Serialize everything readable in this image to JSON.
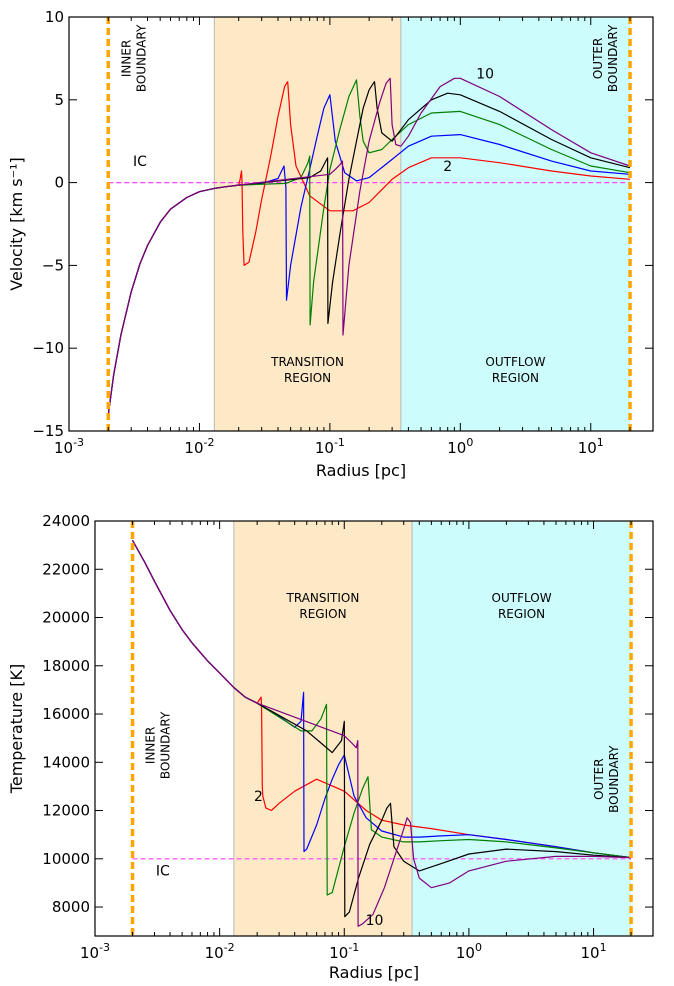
{
  "chart_data": [
    {
      "type": "line",
      "xscale": "log",
      "xlabel": "Radius [pc]",
      "ylabel": "Velocity [km s⁻¹]",
      "xlim": [
        0.001,
        30
      ],
      "ylim": [
        -15,
        10
      ],
      "x_ticks": [
        0.001,
        0.01,
        0.1,
        1,
        10
      ],
      "x_tick_labels": [
        {
          "base": "10",
          "exp": "-3"
        },
        {
          "base": "10",
          "exp": "-2"
        },
        {
          "base": "10",
          "exp": "-1"
        },
        {
          "base": "10",
          "exp": "0"
        },
        {
          "base": "10",
          "exp": "1"
        }
      ],
      "y_ticks": [
        -15,
        -10,
        -5,
        0,
        5,
        10
      ],
      "y_tick_labels": [
        "−15",
        "−10",
        "−5",
        "0",
        "5",
        "10"
      ],
      "regions": [
        {
          "label_lines": [
            "TRANSITION",
            "REGION"
          ],
          "x_start": 0.013,
          "x_end": 0.35,
          "color": "#fde9c6"
        },
        {
          "label_lines": [
            "OUTFLOW",
            "REGION"
          ],
          "x_start": 0.35,
          "x_end": 20,
          "color": "#ccfcfc"
        }
      ],
      "boundaries": [
        {
          "x": 0.002,
          "label_lines": [
            "INNER",
            "BOUNDARY"
          ],
          "label_y": 7.5
        },
        {
          "x": 20,
          "label_lines": [
            "OUTER",
            "BOUNDARY"
          ],
          "label_y": 7.5
        }
      ],
      "boundary_color": "#ffa500",
      "initial_condition": {
        "label": "IC",
        "y": 0,
        "label_x": 0.0035,
        "label_y": 1.0,
        "color": "#ff44ff"
      },
      "curve_labels": [
        {
          "text": "10",
          "x": 1.55,
          "y": 6.3
        },
        {
          "text": "2",
          "x": 0.8,
          "y": 0.7
        }
      ],
      "common_inner": {
        "x": [
          0.002,
          0.0022,
          0.0025,
          0.003,
          0.0035,
          0.004,
          0.005,
          0.006,
          0.008,
          0.01,
          0.013,
          0.016,
          0.02
        ],
        "y": [
          -14.0,
          -11.6,
          -9.2,
          -6.6,
          -4.9,
          -3.8,
          -2.4,
          -1.6,
          -0.9,
          -0.55,
          -0.35,
          -0.25,
          -0.15
        ]
      },
      "series": [
        {
          "color": "#ff0000",
          "x": [
            0.0205,
            0.021,
            0.0212,
            0.0215,
            0.022,
            0.024,
            0.027,
            0.03,
            0.035,
            0.04,
            0.045,
            0.0475,
            0.05,
            0.055,
            0.07,
            0.1,
            0.15,
            0.2,
            0.3,
            0.4,
            0.6,
            1,
            2,
            5,
            10,
            20
          ],
          "y": [
            0.2,
            0.7,
            0.1,
            -3.0,
            -5.0,
            -4.8,
            -3.0,
            -1.0,
            1.5,
            4.0,
            5.8,
            6.1,
            3.5,
            1.0,
            -0.8,
            -1.7,
            -1.7,
            -1.2,
            0.2,
            0.9,
            1.5,
            1.5,
            1.2,
            0.7,
            0.4,
            0.2
          ]
        },
        {
          "color": "#0000ff",
          "x": [
            0.02,
            0.03,
            0.04,
            0.0445,
            0.046,
            0.0465,
            0.05,
            0.06,
            0.07,
            0.08,
            0.09,
            0.1,
            0.11,
            0.13,
            0.16,
            0.2,
            0.3,
            0.4,
            0.6,
            1,
            2,
            5,
            10,
            20
          ],
          "y": [
            -0.15,
            -0.05,
            0.25,
            1.0,
            -0.3,
            -7.1,
            -5.0,
            -1.5,
            0.8,
            2.8,
            4.5,
            5.3,
            2.5,
            0.6,
            0.1,
            0.3,
            1.4,
            2.2,
            2.8,
            2.9,
            2.3,
            1.3,
            0.7,
            0.5
          ]
        },
        {
          "color": "#008000",
          "x": [
            0.046,
            0.06,
            0.068,
            0.07,
            0.0705,
            0.075,
            0.09,
            0.1,
            0.12,
            0.14,
            0.16,
            0.17,
            0.18,
            0.2,
            0.25,
            0.3,
            0.4,
            0.6,
            1,
            2,
            5,
            10,
            20
          ],
          "y": [
            -0.05,
            0.3,
            1.2,
            1.6,
            -8.6,
            -6.0,
            -1.5,
            0.8,
            3.3,
            5.2,
            6.2,
            4.0,
            2.5,
            1.8,
            2.0,
            2.6,
            3.5,
            4.2,
            4.3,
            3.5,
            2.0,
            1.0,
            0.6
          ]
        },
        {
          "color": "#000000",
          "x": [
            0.07,
            0.085,
            0.093,
            0.096,
            0.0965,
            0.105,
            0.12,
            0.14,
            0.16,
            0.18,
            0.2,
            0.22,
            0.23,
            0.25,
            0.3,
            0.4,
            0.6,
            0.8,
            1,
            2,
            5,
            10,
            20
          ],
          "y": [
            0.3,
            0.7,
            1.3,
            1.5,
            -8.5,
            -6.0,
            -3.0,
            0.2,
            2.5,
            4.5,
            5.6,
            6.1,
            4.5,
            3.0,
            2.5,
            3.8,
            5.0,
            5.4,
            5.3,
            4.3,
            2.6,
            1.5,
            0.9
          ]
        },
        {
          "color": "#800080",
          "x": [
            0.1,
            0.11,
            0.12,
            0.125,
            0.126,
            0.14,
            0.17,
            0.2,
            0.24,
            0.27,
            0.29,
            0.3,
            0.32,
            0.35,
            0.4,
            0.5,
            0.7,
            0.9,
            1,
            2,
            5,
            10,
            20
          ],
          "y": [
            0.5,
            0.8,
            1.1,
            1.3,
            -9.2,
            -5.0,
            -0.5,
            2.5,
            4.8,
            6.0,
            6.3,
            3.5,
            2.3,
            2.2,
            2.8,
            4.2,
            5.8,
            6.3,
            6.3,
            5.2,
            3.2,
            1.8,
            1.0
          ]
        }
      ]
    },
    {
      "type": "line",
      "xscale": "log",
      "xlabel": "Radius [pc]",
      "ylabel": "Temperature [K]",
      "xlim": [
        0.001,
        30
      ],
      "ylim": [
        6800,
        24000
      ],
      "x_ticks": [
        0.001,
        0.01,
        0.1,
        1,
        10
      ],
      "x_tick_labels": [
        {
          "base": "10",
          "exp": "-3"
        },
        {
          "base": "10",
          "exp": "-2"
        },
        {
          "base": "10",
          "exp": "-1"
        },
        {
          "base": "10",
          "exp": "0"
        },
        {
          "base": "10",
          "exp": "1"
        }
      ],
      "y_ticks": [
        8000,
        10000,
        12000,
        14000,
        16000,
        18000,
        20000,
        22000,
        24000
      ],
      "y_tick_labels": [
        "8000",
        "10000",
        "12000",
        "14000",
        "16000",
        "18000",
        "20000",
        "22000",
        "24000"
      ],
      "regions": [
        {
          "label_lines": [
            "TRANSITION",
            "REGION"
          ],
          "x_start": 0.013,
          "x_end": 0.35,
          "color": "#fde9c6"
        },
        {
          "label_lines": [
            "OUTFLOW",
            "REGION"
          ],
          "x_start": 0.35,
          "x_end": 20,
          "color": "#ccfcfc"
        }
      ],
      "boundaries": [
        {
          "x": 0.002,
          "label_lines": [
            "INNER",
            "BOUNDARY"
          ],
          "label_y": 14700
        },
        {
          "x": 20,
          "label_lines": [
            "OUTER",
            "BOUNDARY"
          ],
          "label_y": 13300
        }
      ],
      "boundary_color": "#ffa500",
      "initial_condition": {
        "label": "IC",
        "y": 10000,
        "label_x": 0.0035,
        "label_y": 9300,
        "color": "#ff44ff"
      },
      "curve_labels": [
        {
          "text": "2",
          "x": 0.0205,
          "y": 12400
        },
        {
          "text": "10",
          "x": 0.175,
          "y": 7250
        }
      ],
      "common_inner": {
        "x": [
          0.002,
          0.0025,
          0.003,
          0.004,
          0.005,
          0.006,
          0.008,
          0.01,
          0.013,
          0.016,
          0.02
        ],
        "y": [
          23200,
          22300,
          21500,
          20300,
          19500,
          18950,
          18200,
          17700,
          17100,
          16700,
          16450
        ]
      },
      "series": [
        {
          "color": "#ff0000",
          "x": [
            0.02,
            0.0215,
            0.0217,
            0.022,
            0.0222,
            0.0235,
            0.026,
            0.03,
            0.04,
            0.06,
            0.1,
            0.15,
            0.2,
            0.3,
            0.5,
            1,
            2,
            5,
            10,
            20
          ],
          "y": [
            16450,
            16700,
            16200,
            13000,
            12600,
            12100,
            12000,
            12300,
            12800,
            13300,
            12800,
            12000,
            11600,
            11400,
            11250,
            11000,
            10800,
            10500,
            10250,
            10050
          ]
        },
        {
          "color": "#0000ff",
          "x": [
            0.02,
            0.03,
            0.04,
            0.045,
            0.0472,
            0.0475,
            0.05,
            0.06,
            0.07,
            0.08,
            0.09,
            0.1,
            0.12,
            0.15,
            0.2,
            0.3,
            0.4,
            0.6,
            1,
            2,
            5,
            10,
            20
          ],
          "y": [
            16450,
            15900,
            15450,
            15700,
            16900,
            10300,
            10400,
            11400,
            12500,
            13300,
            13900,
            14300,
            12600,
            11700,
            11150,
            10900,
            10900,
            10950,
            11000,
            10800,
            10500,
            10250,
            10050
          ]
        },
        {
          "color": "#008000",
          "x": [
            0.045,
            0.055,
            0.065,
            0.072,
            0.073,
            0.08,
            0.1,
            0.12,
            0.14,
            0.155,
            0.165,
            0.2,
            0.3,
            0.4,
            0.6,
            1,
            2,
            5,
            10,
            20
          ],
          "y": [
            15300,
            15300,
            15800,
            16400,
            8500,
            8600,
            10500,
            11900,
            12900,
            13400,
            11200,
            10900,
            10700,
            10700,
            10750,
            10800,
            10700,
            10450,
            10250,
            10050
          ]
        },
        {
          "color": "#000000",
          "x": [
            0.05,
            0.065,
            0.08,
            0.095,
            0.1,
            0.101,
            0.11,
            0.13,
            0.16,
            0.2,
            0.22,
            0.235,
            0.25,
            0.3,
            0.4,
            0.6,
            1,
            2,
            5,
            10,
            20
          ],
          "y": [
            15300,
            14800,
            14400,
            14900,
            15700,
            7600,
            7800,
            9200,
            10600,
            11600,
            12100,
            12300,
            10500,
            9900,
            9500,
            9800,
            10200,
            10400,
            10300,
            10150,
            10050
          ]
        },
        {
          "color": "#800080",
          "x": [
            0.1,
            0.115,
            0.125,
            0.1285,
            0.129,
            0.14,
            0.17,
            0.21,
            0.25,
            0.29,
            0.32,
            0.34,
            0.36,
            0.4,
            0.5,
            0.7,
            1,
            2,
            5,
            10,
            20
          ],
          "y": [
            15100,
            14800,
            14600,
            14900,
            7200,
            7300,
            7700,
            8800,
            10000,
            11000,
            11700,
            11500,
            10000,
            9200,
            8800,
            9000,
            9500,
            9900,
            10100,
            10100,
            10050
          ]
        }
      ]
    }
  ]
}
